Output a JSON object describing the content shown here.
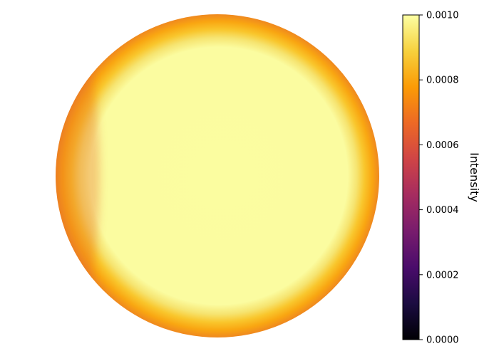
{
  "chart_data": {
    "type": "heatmap",
    "shape": "disk",
    "description_of_field": "",
    "colormap": "inferno",
    "colorbar": {
      "label": "Intensity",
      "vmin": 0.0,
      "vmax": 0.001,
      "ticks": [
        0.0,
        0.0002,
        0.0004,
        0.0006,
        0.0008,
        0.001
      ],
      "tick_labels": [
        "0.0000",
        "0.0002",
        "0.0004",
        "0.0006",
        "0.0008",
        "0.0010"
      ],
      "placement": "right"
    },
    "field": {
      "center_value": 0.001,
      "edge_value_left": 0.00069,
      "edge_value_right": 0.00087,
      "edge_value_top": 0.00083,
      "edge_value_bottom": 0.00078,
      "plateau_fraction_of_radius": 0.82
    },
    "axes_visible": false,
    "grid": false
  },
  "colors": {
    "cmap_stops": [
      "#000004",
      "#1b0c41",
      "#4a0c6b",
      "#781c6d",
      "#a52c60",
      "#cf4446",
      "#ed6925",
      "#fb9b06",
      "#f7d13d",
      "#fcffa4"
    ]
  }
}
